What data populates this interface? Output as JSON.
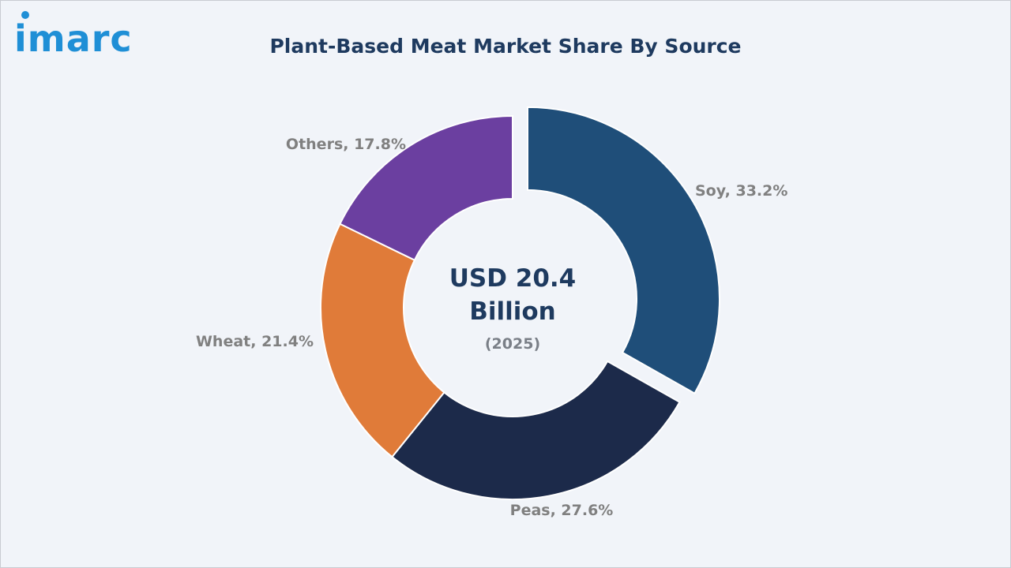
{
  "brand": {
    "logo_text": "imarc"
  },
  "colors": {
    "background": "#f1f4f9",
    "title": "#1e3a5f",
    "label": "#808080",
    "soy": "#1f4e79",
    "peas": "#1c2a4a",
    "wheat": "#e07b39",
    "others": "#6b3fa0"
  },
  "chart_data": {
    "type": "pie",
    "title": "Plant-Based Meat Market Share By Source",
    "center_text": {
      "line1": "USD 20.4",
      "line2": "Billion",
      "year": "(2025)"
    },
    "slices": [
      {
        "category": "Soy",
        "value": 33.2,
        "label": "Soy, 33.2%",
        "color": "#1f4e79",
        "exploded": true
      },
      {
        "category": "Peas",
        "value": 27.6,
        "label": "Peas, 27.6%",
        "color": "#1c2a4a",
        "exploded": false
      },
      {
        "category": "Wheat",
        "value": 21.4,
        "label": "Wheat, 21.4%",
        "color": "#e07b39",
        "exploded": false
      },
      {
        "category": "Others",
        "value": 17.8,
        "label": "Others, 17.8%",
        "color": "#6b3fa0",
        "exploded": false
      }
    ],
    "donut": true,
    "legend": "none"
  }
}
